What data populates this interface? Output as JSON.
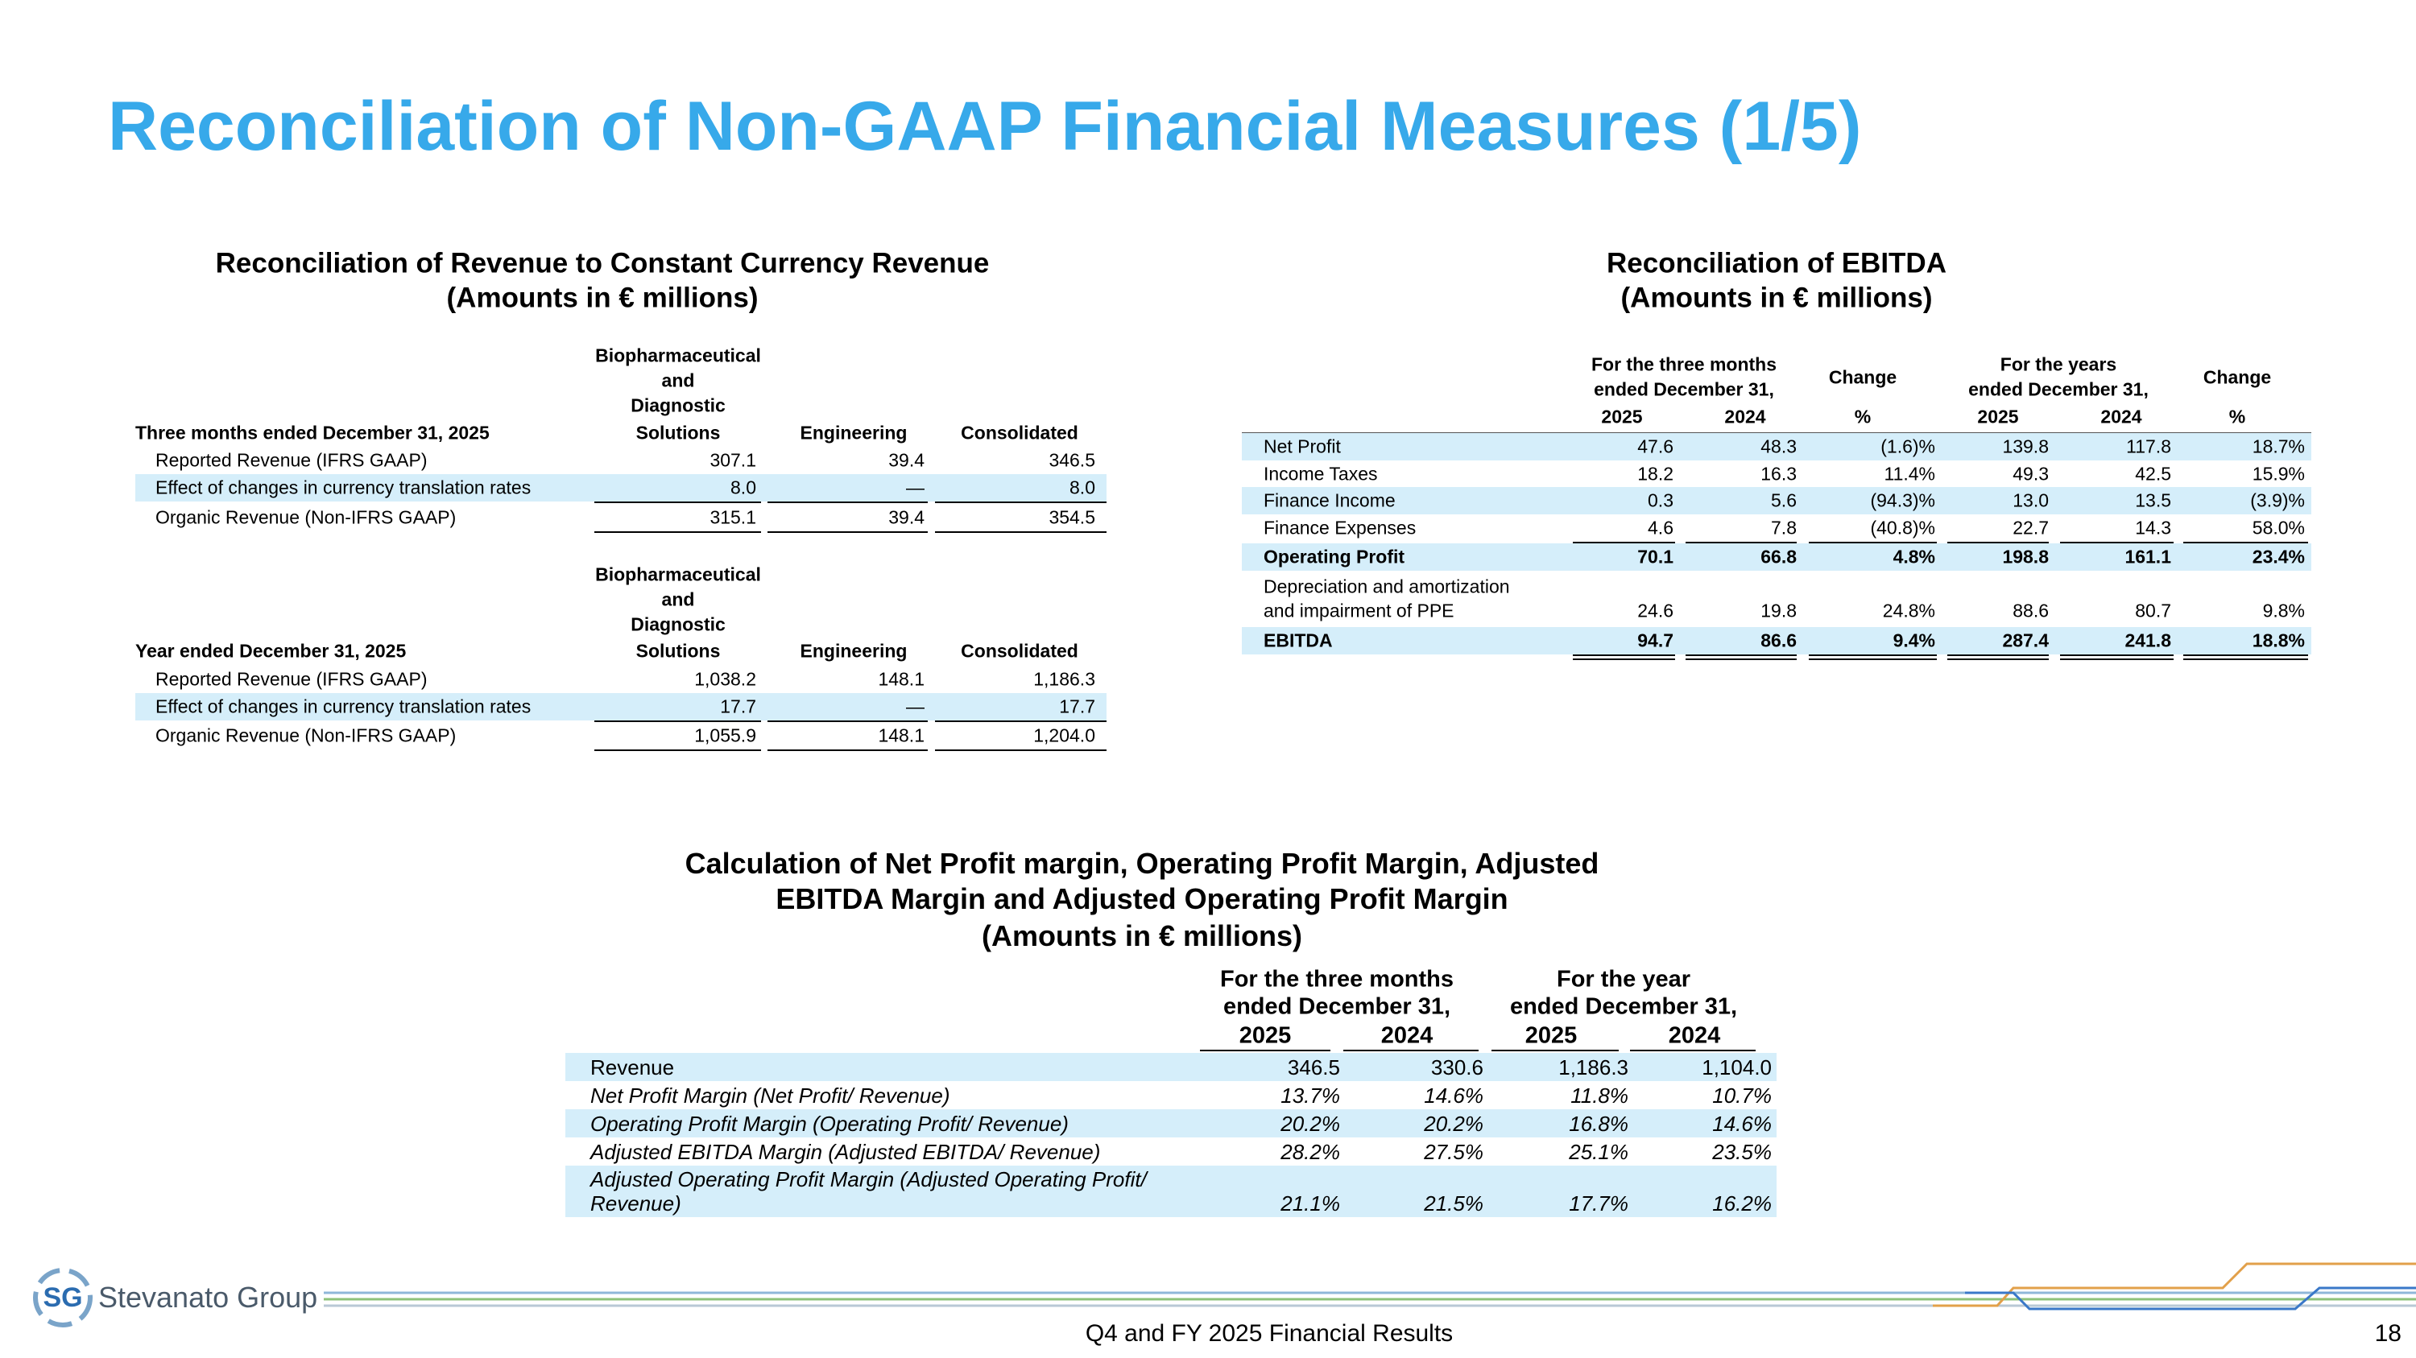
{
  "header": {
    "title": "Reconciliation of Non-GAAP Financial Measures (1/5)"
  },
  "revenue_table": {
    "title": "Reconciliation of Revenue to Constant Currency Revenue",
    "subtitle": "(Amounts in € millions)",
    "sections": [
      {
        "period": "Three months ended December 31, 2025",
        "columns": [
          [
            "Biopharmaceutical",
            "and",
            "Diagnostic",
            "Solutions"
          ],
          [
            "Engineering"
          ],
          [
            "Consolidated"
          ]
        ],
        "rows": [
          {
            "label": "Reported Revenue (IFRS GAAP)",
            "values": [
              "307.1",
              "39.4",
              "346.5"
            ]
          },
          {
            "label": "Effect of changes in currency translation rates",
            "values": [
              "8.0",
              "—",
              "8.0"
            ]
          },
          {
            "label": "Organic Revenue (Non-IFRS GAAP)",
            "values": [
              "315.1",
              "39.4",
              "354.5"
            ]
          }
        ]
      },
      {
        "period": "Year ended December 31, 2025",
        "columns": [
          [
            "Biopharmaceutical",
            "and",
            "Diagnostic",
            "Solutions"
          ],
          [
            "Engineering"
          ],
          [
            "Consolidated"
          ]
        ],
        "rows": [
          {
            "label": "Reported Revenue (IFRS GAAP)",
            "values": [
              "1,038.2",
              "148.1",
              "1,186.3"
            ]
          },
          {
            "label": "Effect of changes in currency translation rates",
            "values": [
              "17.7",
              "—",
              "17.7"
            ]
          },
          {
            "label": "Organic Revenue (Non-IFRS GAAP)",
            "values": [
              "1,055.9",
              "148.1",
              "1,204.0"
            ]
          }
        ]
      }
    ]
  },
  "ebitda_table": {
    "title": "Reconciliation of EBITDA",
    "subtitle": "(Amounts in € millions)",
    "groups": [
      [
        "For the three months",
        "ended December 31,"
      ],
      [
        "Change"
      ],
      [
        "For the years",
        "ended December 31,"
      ],
      [
        "Change"
      ]
    ],
    "columns": [
      "2025",
      "2024",
      "%",
      "2025",
      "2024",
      "%"
    ],
    "rows": [
      {
        "label": [
          "Net Profit"
        ],
        "values": [
          "47.6",
          "48.3",
          "(1.6)%",
          "139.8",
          "117.8",
          "18.7%"
        ]
      },
      {
        "label": [
          "Income Taxes"
        ],
        "values": [
          "18.2",
          "16.3",
          "11.4%",
          "49.3",
          "42.5",
          "15.9%"
        ]
      },
      {
        "label": [
          "Finance Income"
        ],
        "values": [
          "0.3",
          "5.6",
          "(94.3)%",
          "13.0",
          "13.5",
          "(3.9)%"
        ]
      },
      {
        "label": [
          "Finance Expenses"
        ],
        "values": [
          "4.6",
          "7.8",
          "(40.8)%",
          "22.7",
          "14.3",
          "58.0%"
        ]
      },
      {
        "label": [
          "Operating Profit"
        ],
        "values": [
          "70.1",
          "66.8",
          "4.8%",
          "198.8",
          "161.1",
          "23.4%"
        ]
      },
      {
        "label": [
          "Depreciation and amortization",
          "and impairment of PPE"
        ],
        "values": [
          "24.6",
          "19.8",
          "24.8%",
          "88.6",
          "80.7",
          "9.8%"
        ]
      },
      {
        "label": [
          "EBITDA"
        ],
        "values": [
          "94.7",
          "86.6",
          "9.4%",
          "287.4",
          "241.8",
          "18.8%"
        ]
      }
    ]
  },
  "margin_table": {
    "title": [
      "Calculation of Net Profit margin, Operating Profit Margin, Adjusted",
      "EBITDA Margin and Adjusted Operating Profit Margin",
      "(Amounts in € millions)"
    ],
    "groups": [
      [
        "For the three months",
        "ended December 31,"
      ],
      [
        "For the year",
        "ended December 31,"
      ]
    ],
    "columns": [
      "2025",
      "2024",
      "2025",
      "2024"
    ],
    "rows": [
      {
        "label": [
          "Revenue"
        ],
        "values": [
          "346.5",
          "330.6",
          "1,186.3",
          "1,104.0"
        ]
      },
      {
        "label": [
          "Net Profit Margin (Net Profit/ Revenue)"
        ],
        "values": [
          "13.7%",
          "14.6%",
          "11.8%",
          "10.7%"
        ]
      },
      {
        "label": [
          "Operating Profit Margin (Operating Profit/ Revenue)"
        ],
        "values": [
          "20.2%",
          "20.2%",
          "16.8%",
          "14.6%"
        ]
      },
      {
        "label": [
          "Adjusted EBITDA Margin (Adjusted EBITDA/ Revenue)"
        ],
        "values": [
          "28.2%",
          "27.5%",
          "25.1%",
          "23.5%"
        ]
      },
      {
        "label": [
          "Adjusted Operating Profit Margin (Adjusted Operating Profit/",
          "Revenue)"
        ],
        "values": [
          "21.1%",
          "21.5%",
          "17.7%",
          "16.2%"
        ]
      }
    ]
  },
  "footer": {
    "logo_mark": "SG",
    "company": "Stevanato Group",
    "text": "Q4 and FY 2025 Financial Results",
    "page": "18"
  }
}
